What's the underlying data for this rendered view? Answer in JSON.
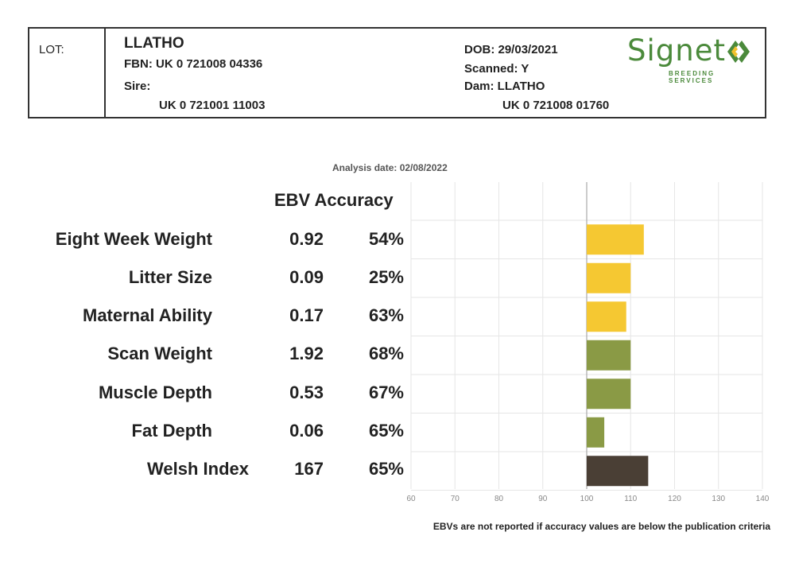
{
  "header": {
    "lot_label": "LOT:",
    "name": "LLATHO",
    "fbn": "FBN: UK 0 721008 04336",
    "sire_label": "Sire:",
    "sire_id": "UK 0 721001 11003",
    "dob": "DOB: 29/03/2021",
    "scanned": "Scanned: Y",
    "dam": "Dam: LLATHO",
    "dam_id": "UK 0 721008 01760",
    "logo_word": "Signet",
    "logo_sub": "BREEDING SERVICES",
    "logo_colors": {
      "green": "#4b8a3b",
      "yellow": "#f2c12e"
    }
  },
  "analysis_date": "Analysis date: 02/08/2022",
  "column_header": "EBV Accuracy",
  "footnote": "EBVs are not reported if accuracy values are below the publication criteria",
  "traits": [
    {
      "name": "Eight Week Weight",
      "ebv": "0.92",
      "accuracy": "54%"
    },
    {
      "name": "Litter Size",
      "ebv": "0.09",
      "accuracy": "25%"
    },
    {
      "name": "Maternal Ability",
      "ebv": "0.17",
      "accuracy": "63%"
    },
    {
      "name": "Scan Weight",
      "ebv": "1.92",
      "accuracy": "68%"
    },
    {
      "name": "Muscle Depth",
      "ebv": "0.53",
      "accuracy": "67%"
    },
    {
      "name": "Fat Depth",
      "ebv": "0.06",
      "accuracy": "65%"
    },
    {
      "name": "Welsh Index",
      "ebv": "167",
      "accuracy": "65%"
    }
  ],
  "chart_data": {
    "type": "bar",
    "orientation": "horizontal",
    "categories": [
      "Eight Week Weight",
      "Litter Size",
      "Maternal Ability",
      "Scan Weight",
      "Muscle Depth",
      "Fat Depth",
      "Welsh Index"
    ],
    "values": [
      113,
      110,
      109,
      110,
      110,
      104,
      114
    ],
    "baseline": 100,
    "xlim": [
      60,
      140
    ],
    "xticks": [
      "60",
      "70",
      "80",
      "90",
      "100",
      "110",
      "120",
      "130",
      "140"
    ],
    "colors": [
      "#f5c832",
      "#f5c832",
      "#f5c832",
      "#8a9a45",
      "#8a9a45",
      "#8a9a45",
      "#4a3f35"
    ],
    "grid": true,
    "legend": "none",
    "title": "",
    "xlabel": "",
    "ylabel": ""
  }
}
